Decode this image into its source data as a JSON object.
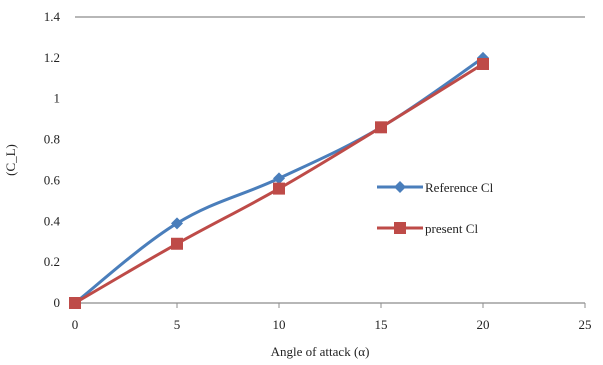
{
  "chart_data": {
    "type": "line",
    "xlabel": "Angle of attack (α)",
    "ylabel": "(C_L)",
    "xlim": [
      0,
      25
    ],
    "ylim": [
      0,
      1.4
    ],
    "x_ticks": [
      "0",
      "5",
      "10",
      "15",
      "20",
      "25"
    ],
    "y_ticks": [
      "0",
      "0.2",
      "0.4",
      "0.6",
      "0.8",
      "1",
      "1.2",
      "1.4"
    ],
    "grid": false,
    "legend_position": "right",
    "series": [
      {
        "name": "Reference Cl",
        "color": "#4a7ebb",
        "marker": "diamond",
        "x": [
          0,
          5,
          10,
          15,
          20
        ],
        "y": [
          0.0,
          0.39,
          0.61,
          0.86,
          1.2
        ]
      },
      {
        "name": "present Cl",
        "color": "#be4b48",
        "marker": "square",
        "x": [
          0,
          5,
          10,
          15,
          20
        ],
        "y": [
          0.0,
          0.29,
          0.56,
          0.86,
          1.17
        ]
      }
    ]
  }
}
